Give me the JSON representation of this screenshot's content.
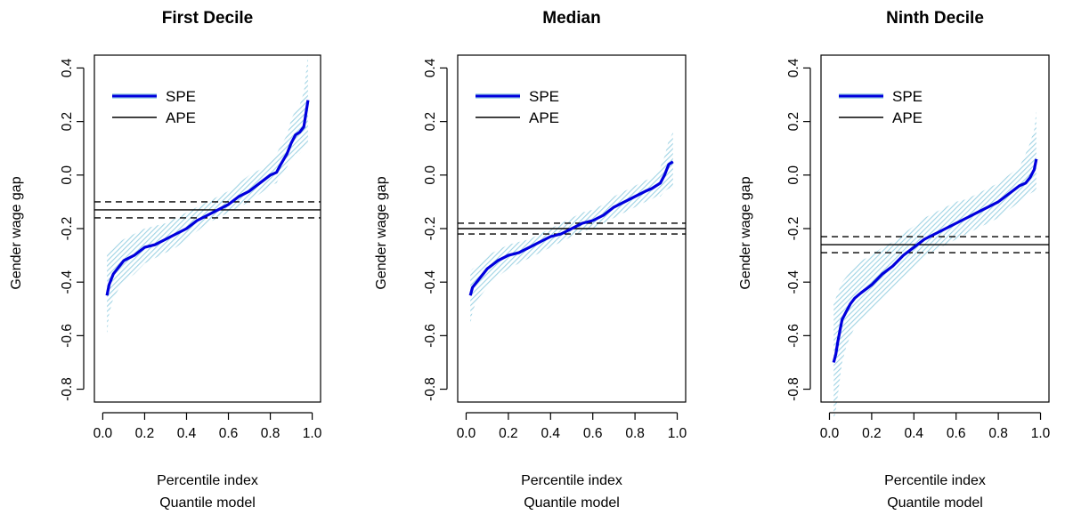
{
  "chart_data": [
    {
      "type": "line",
      "title": "First Decile",
      "xlabel": "Percentile index",
      "xlabel2": "Quantile model",
      "ylabel": "Gender wage gap",
      "xlim": [
        0,
        1
      ],
      "ylim": [
        -0.8,
        0.4
      ],
      "xticks": [
        "0.0",
        "0.2",
        "0.4",
        "0.6",
        "0.8",
        "1.0"
      ],
      "yticks": [
        "-0.8",
        "-0.6",
        "-0.4",
        "-0.2",
        "0.0",
        "0.2",
        "0.4"
      ],
      "legend": {
        "position": "top-left",
        "entries": [
          "SPE",
          "APE"
        ]
      },
      "colors": {
        "spe": "#0000dd",
        "band": "#a8d8e6",
        "ape": "#000000"
      },
      "ape": {
        "value": -0.13,
        "lower": -0.16,
        "upper": -0.1
      },
      "x": [
        0.02,
        0.03,
        0.05,
        0.08,
        0.1,
        0.15,
        0.2,
        0.25,
        0.3,
        0.35,
        0.4,
        0.45,
        0.5,
        0.55,
        0.6,
        0.65,
        0.7,
        0.75,
        0.8,
        0.83,
        0.85,
        0.88,
        0.9,
        0.92,
        0.94,
        0.96,
        0.98
      ],
      "series": [
        {
          "name": "SPE",
          "values": [
            -0.45,
            -0.41,
            -0.37,
            -0.34,
            -0.32,
            -0.3,
            -0.27,
            -0.26,
            -0.24,
            -0.22,
            -0.2,
            -0.17,
            -0.15,
            -0.13,
            -0.11,
            -0.08,
            -0.06,
            -0.03,
            0.0,
            0.01,
            0.04,
            0.08,
            0.12,
            0.15,
            0.16,
            0.18,
            0.28
          ]
        },
        {
          "name": "lower",
          "values": [
            -0.6,
            -0.52,
            -0.46,
            -0.42,
            -0.4,
            -0.37,
            -0.33,
            -0.31,
            -0.29,
            -0.27,
            -0.24,
            -0.21,
            -0.18,
            -0.16,
            -0.14,
            -0.12,
            -0.1,
            -0.07,
            -0.04,
            -0.03,
            0.0,
            0.03,
            0.06,
            0.08,
            0.08,
            0.1,
            0.12
          ]
        },
        {
          "name": "upper",
          "values": [
            -0.3,
            -0.29,
            -0.27,
            -0.25,
            -0.24,
            -0.22,
            -0.2,
            -0.19,
            -0.18,
            -0.16,
            -0.14,
            -0.12,
            -0.1,
            -0.08,
            -0.06,
            -0.03,
            0.0,
            0.02,
            0.05,
            0.08,
            0.11,
            0.15,
            0.21,
            0.24,
            0.26,
            0.31,
            0.45
          ]
        }
      ]
    },
    {
      "type": "line",
      "title": "Median",
      "xlabel": "Percentile index",
      "xlabel2": "Quantile model",
      "ylabel": "Gender wage gap",
      "xlim": [
        0,
        1
      ],
      "ylim": [
        -0.8,
        0.4
      ],
      "xticks": [
        "0.0",
        "0.2",
        "0.4",
        "0.6",
        "0.8",
        "1.0"
      ],
      "yticks": [
        "-0.8",
        "-0.6",
        "-0.4",
        "-0.2",
        "0.0",
        "0.2",
        "0.4"
      ],
      "legend": {
        "position": "top-left",
        "entries": [
          "SPE",
          "APE"
        ]
      },
      "colors": {
        "spe": "#0000dd",
        "band": "#a8d8e6",
        "ape": "#000000"
      },
      "ape": {
        "value": -0.2,
        "lower": -0.22,
        "upper": -0.18
      },
      "x": [
        0.02,
        0.03,
        0.05,
        0.08,
        0.1,
        0.15,
        0.2,
        0.25,
        0.3,
        0.35,
        0.4,
        0.45,
        0.5,
        0.55,
        0.6,
        0.65,
        0.7,
        0.75,
        0.8,
        0.85,
        0.88,
        0.9,
        0.92,
        0.94,
        0.96,
        0.98
      ],
      "series": [
        {
          "name": "SPE",
          "values": [
            -0.45,
            -0.42,
            -0.4,
            -0.37,
            -0.35,
            -0.32,
            -0.3,
            -0.29,
            -0.27,
            -0.25,
            -0.23,
            -0.22,
            -0.2,
            -0.18,
            -0.17,
            -0.15,
            -0.12,
            -0.1,
            -0.08,
            -0.06,
            -0.05,
            -0.04,
            -0.03,
            0.0,
            0.04,
            0.05
          ]
        },
        {
          "name": "lower",
          "values": [
            -0.56,
            -0.51,
            -0.47,
            -0.44,
            -0.42,
            -0.38,
            -0.35,
            -0.33,
            -0.31,
            -0.29,
            -0.27,
            -0.25,
            -0.23,
            -0.21,
            -0.2,
            -0.18,
            -0.16,
            -0.14,
            -0.12,
            -0.1,
            -0.09,
            -0.08,
            -0.08,
            -0.06,
            -0.05,
            -0.05
          ]
        },
        {
          "name": "upper",
          "values": [
            -0.36,
            -0.35,
            -0.34,
            -0.32,
            -0.3,
            -0.28,
            -0.26,
            -0.25,
            -0.24,
            -0.22,
            -0.2,
            -0.18,
            -0.16,
            -0.14,
            -0.13,
            -0.11,
            -0.08,
            -0.06,
            -0.04,
            -0.02,
            -0.01,
            0.0,
            0.03,
            0.07,
            0.13,
            0.16
          ]
        }
      ]
    },
    {
      "type": "line",
      "title": "Ninth Decile",
      "xlabel": "Percentile index",
      "xlabel2": "Quantile model",
      "ylabel": "Gender wage gap",
      "xlim": [
        0,
        1
      ],
      "ylim": [
        -0.8,
        0.4
      ],
      "xticks": [
        "0.0",
        "0.2",
        "0.4",
        "0.6",
        "0.8",
        "1.0"
      ],
      "yticks": [
        "-0.8",
        "-0.6",
        "-0.4",
        "-0.2",
        "0.0",
        "0.2",
        "0.4"
      ],
      "legend": {
        "position": "top-left",
        "entries": [
          "SPE",
          "APE"
        ]
      },
      "colors": {
        "spe": "#0000dd",
        "band": "#a8d8e6",
        "ape": "#000000"
      },
      "ape": {
        "value": -0.26,
        "lower": -0.29,
        "upper": -0.23
      },
      "x": [
        0.02,
        0.03,
        0.04,
        0.05,
        0.06,
        0.08,
        0.1,
        0.12,
        0.15,
        0.2,
        0.25,
        0.3,
        0.35,
        0.4,
        0.45,
        0.5,
        0.55,
        0.6,
        0.65,
        0.7,
        0.75,
        0.8,
        0.85,
        0.9,
        0.93,
        0.95,
        0.97,
        0.98
      ],
      "series": [
        {
          "name": "SPE",
          "values": [
            -0.7,
            -0.67,
            -0.62,
            -0.58,
            -0.54,
            -0.51,
            -0.48,
            -0.46,
            -0.44,
            -0.41,
            -0.37,
            -0.34,
            -0.3,
            -0.27,
            -0.24,
            -0.22,
            -0.2,
            -0.18,
            -0.16,
            -0.14,
            -0.12,
            -0.1,
            -0.07,
            -0.04,
            -0.03,
            -0.01,
            0.02,
            0.06
          ]
        },
        {
          "name": "lower",
          "values": [
            -0.92,
            -0.88,
            -0.82,
            -0.76,
            -0.7,
            -0.64,
            -0.6,
            -0.57,
            -0.54,
            -0.5,
            -0.46,
            -0.42,
            -0.38,
            -0.35,
            -0.31,
            -0.28,
            -0.26,
            -0.24,
            -0.22,
            -0.2,
            -0.18,
            -0.16,
            -0.13,
            -0.1,
            -0.08,
            -0.07,
            -0.06,
            -0.05
          ]
        },
        {
          "name": "upper",
          "values": [
            -0.48,
            -0.46,
            -0.44,
            -0.42,
            -0.4,
            -0.38,
            -0.36,
            -0.34,
            -0.32,
            -0.3,
            -0.27,
            -0.25,
            -0.22,
            -0.19,
            -0.16,
            -0.14,
            -0.12,
            -0.1,
            -0.09,
            -0.07,
            -0.05,
            -0.03,
            0.0,
            0.03,
            0.08,
            0.12,
            0.17,
            0.24
          ]
        }
      ]
    }
  ]
}
